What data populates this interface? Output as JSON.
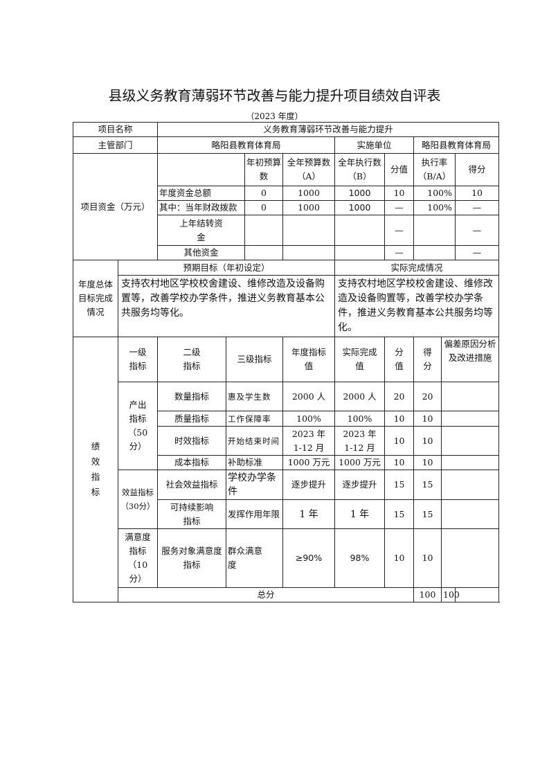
{
  "title": "县级义务教育薄弱环节改善与能力提升项目绩效自评表",
  "year": "（2023 年度）",
  "info": {
    "name_label": "项目名称",
    "name": "义务教育薄弱环节改善与能力提升",
    "dept_label": "主管部门",
    "dept": "略阳县教育体育局",
    "impl_label": "实施单位",
    "impl": "略阳县教育体育局"
  },
  "funds": {
    "label": "项目资金（万元）",
    "headers": [
      "年初预算数",
      "全年预算数（A）",
      "全年执行数（B）",
      "分值",
      "执行率（B/A）",
      "得分"
    ],
    "rows": [
      {
        "name": "年度资金总额",
        "init": "0",
        "a": "1000",
        "b": "1000",
        "score_val": "10",
        "rate": "100%",
        "score": "10"
      },
      {
        "name": "其中：当年财政拨款",
        "init": "0",
        "a": "1000",
        "b": "1000",
        "score_val": "—",
        "rate": "100%",
        "score": "—"
      },
      {
        "name": "上年结转资金",
        "init": "",
        "a": "",
        "b": "",
        "score_val": "—",
        "rate": "",
        "score": "—"
      },
      {
        "name": "其他资金",
        "init": "",
        "a": "",
        "b": "",
        "score_val": "—",
        "rate": "",
        "score": "—"
      }
    ]
  },
  "goals": {
    "label": "年度总体目标完成情况",
    "expected_label": "预期目标（年初设定）",
    "actual_label": "实际完成情况",
    "expected": "支持农村地区学校校舍建设、维修改造及设备购置等，改善学校办学条件，推进义务教育基本公共服务均等化。",
    "actual": "支持农村地区学校校舍建设、维修改造及设备购置等，改善学校办学条件，推进义务教育基本公共服务均等化。"
  },
  "perf": {
    "label": "绩效指标",
    "headers": [
      "一级指标",
      "二级指标",
      "三级指标",
      "年度指标值",
      "实际完成值",
      "分值",
      "得分",
      "偏差原因分析及改进措施"
    ],
    "groups": [
      "产出指标（50分）",
      "效益指标（30分）",
      "满意度指标（10分）"
    ],
    "rows": [
      {
        "l2": "数量指标",
        "l3": "惠及学生数",
        "target": "2000 人",
        "actual": "2000 人",
        "val": "20",
        "score": "20"
      },
      {
        "l2": "质量指标",
        "l3": "工作保障率",
        "target": "100%",
        "actual": "100%",
        "val": "10",
        "score": "10"
      },
      {
        "l2": "时效指标",
        "l3": "开始结束时间",
        "target": "2023 年 1-12 月",
        "actual": "2023 年 1-12 月",
        "val": "10",
        "score": "10"
      },
      {
        "l2": "成本指标",
        "l3": "补助标准",
        "target": "1000 万元",
        "actual": "1000 万元",
        "val": "10",
        "score": "10"
      },
      {
        "l2": "社会效益指标",
        "l3": "学校办学条件",
        "target": "逐步提升",
        "actual": "逐步提升",
        "val": "15",
        "score": "15"
      },
      {
        "l2": "可持续影响指标",
        "l3": "发挥作用年限",
        "target": "1 年",
        "actual": "1 年",
        "val": "15",
        "score": "15"
      },
      {
        "l2": "服务对象满意度指标",
        "l3": "群众满意度",
        "target": "≥90%",
        "actual": "98%",
        "val": "10",
        "score": "10"
      }
    ],
    "total_label": "总分",
    "total_val": "100",
    "total_score": "100"
  }
}
